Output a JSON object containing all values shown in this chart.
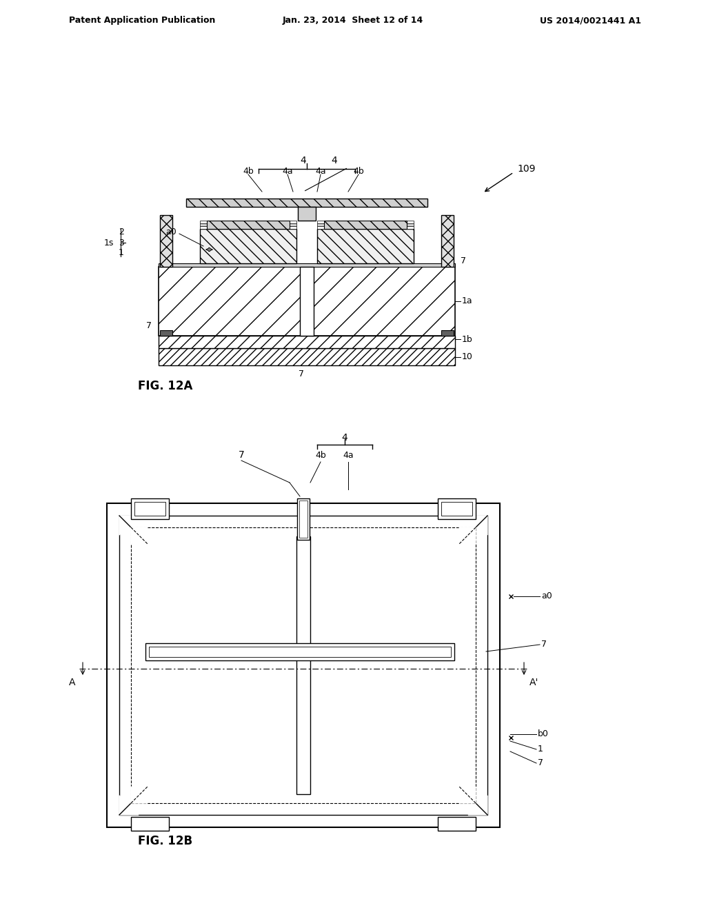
{
  "bg_color": "#ffffff",
  "header_left": "Patent Application Publication",
  "header_mid": "Jan. 23, 2014  Sheet 12 of 14",
  "header_right": "US 2014/0021441 A1",
  "fig12a_label": "FIG. 12A",
  "fig12b_label": "FIG. 12B",
  "label_109": "109",
  "labels_12a": [
    "4",
    "4b",
    "4a",
    "4a",
    "4b",
    "a0",
    "1s",
    "2",
    "3",
    "1",
    "7",
    "7",
    "7",
    "1a",
    "1b",
    "10"
  ],
  "labels_12b": [
    "4",
    "4b",
    "4a",
    "7",
    "a0",
    "7",
    "A",
    "A'",
    "b0",
    "1",
    "7"
  ]
}
